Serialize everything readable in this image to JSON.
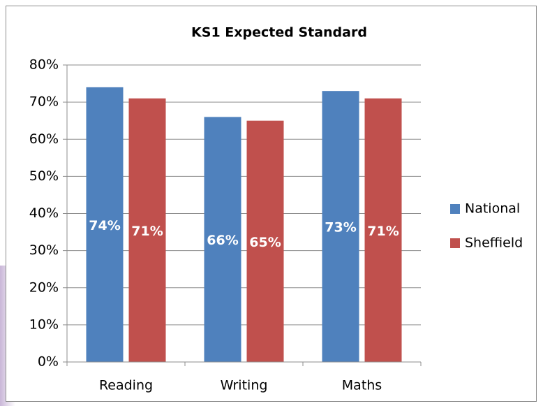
{
  "chart_data": {
    "type": "bar",
    "title": "KS1 Expected Standard",
    "categories": [
      "Reading",
      "Writing",
      "Maths"
    ],
    "series": [
      {
        "name": "National",
        "color": "#4f81bd",
        "values": [
          74,
          66,
          73
        ],
        "value_labels": [
          "74%",
          "66%",
          "73%"
        ]
      },
      {
        "name": "Sheffield",
        "color": "#c0504d",
        "values": [
          71,
          65,
          71
        ],
        "value_labels": [
          "71%",
          "65%",
          "71%"
        ]
      }
    ],
    "ylim": [
      0,
      80
    ],
    "yticks": [
      {
        "value": 0,
        "label": "0%"
      },
      {
        "value": 10,
        "label": "10%"
      },
      {
        "value": 20,
        "label": "20%"
      },
      {
        "value": 30,
        "label": "30%"
      },
      {
        "value": 40,
        "label": "40%"
      },
      {
        "value": 50,
        "label": "50%"
      },
      {
        "value": 60,
        "label": "60%"
      },
      {
        "value": 70,
        "label": "70%"
      },
      {
        "value": 80,
        "label": "80%"
      }
    ],
    "grid": true,
    "legend": "right"
  }
}
